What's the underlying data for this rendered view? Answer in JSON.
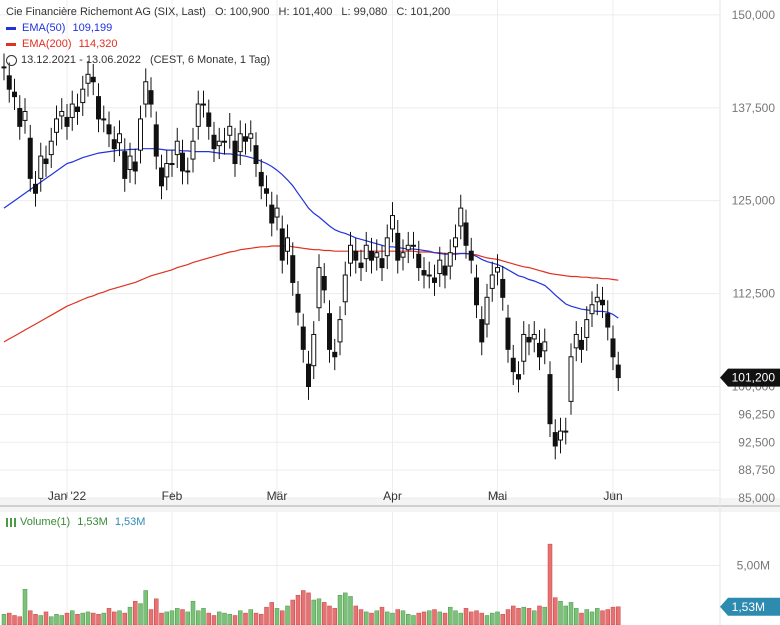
{
  "header": {
    "title": "Cie Financière Richemont AG (SIX, Last)",
    "ohlc": [
      {
        "label": "O:",
        "value": "100,900"
      },
      {
        "label": "H:",
        "value": "101,400"
      },
      {
        "label": "L:",
        "value": "99,080"
      },
      {
        "label": "C:",
        "value": "101,200"
      }
    ],
    "ema50": {
      "label": "EMA(50)",
      "value": "109,199",
      "color": "#2233dd"
    },
    "ema200": {
      "label": "EMA(200)",
      "value": "114,320",
      "color": "#e03020"
    },
    "range": "13.12.2021 - 13.06.2022",
    "range_note": "(CEST, 6 Monate, 1 Tag)"
  },
  "volume_legend": {
    "label": "Volume(1)",
    "value1": "1,53M",
    "value2": "1,53M"
  },
  "last_price_label": "101,200",
  "last_volume_label": "1,53M",
  "chart_data": [
    {
      "type": "candlestick",
      "ylim": [
        85000,
        152000
      ],
      "y_ticks": [
        "150,000",
        "137,500",
        "125,000",
        "112,500",
        "100,000",
        "96,250",
        "92,500",
        "88,750",
        "85,000"
      ],
      "y_tick_values": [
        150000,
        137500,
        125000,
        112500,
        100000,
        96250,
        92500,
        88750,
        85000
      ],
      "x_tick_labels": [
        "Jan '22",
        "Feb",
        "Mär",
        "Apr",
        "Mai",
        "Jun"
      ],
      "x_tick_index": [
        12,
        32,
        52,
        74,
        94,
        116
      ],
      "grid": true,
      "ohlc_close": [
        143,
        140,
        139,
        135,
        137,
        128,
        126,
        131,
        130,
        133,
        136,
        137,
        135,
        138,
        137,
        140,
        142,
        141,
        136,
        136,
        134,
        132,
        134,
        128,
        131,
        129,
        136,
        141,
        138,
        131,
        127,
        130,
        130,
        133,
        129,
        129,
        133,
        138,
        138,
        135,
        132,
        133,
        133,
        135,
        130,
        134,
        133,
        134,
        130,
        127,
        126,
        122,
        124,
        117,
        120,
        114,
        110,
        105,
        100,
        107,
        116,
        113,
        105,
        104,
        109,
        115,
        119,
        117,
        116,
        119,
        117,
        118,
        116,
        120,
        123,
        117,
        118,
        119,
        119,
        116,
        115,
        115,
        114,
        117,
        115,
        118,
        120,
        124,
        119,
        117,
        111,
        106,
        112,
        115,
        116,
        112,
        105,
        102,
        101,
        107,
        106,
        107,
        104,
        106,
        95,
        92,
        94,
        94,
        104,
        107,
        105,
        109,
        111,
        112,
        111,
        108,
        104,
        101.2
      ],
      "ema50": [
        124,
        124.5,
        125,
        125.5,
        126,
        126.5,
        127,
        127.5,
        128,
        128.5,
        129,
        129.5,
        130,
        130.2,
        130.5,
        130.8,
        131,
        131.2,
        131.4,
        131.5,
        131.6,
        131.7,
        131.8,
        131.8,
        131.9,
        131.9,
        132,
        132,
        132,
        132,
        131.9,
        131.8,
        131.8,
        131.8,
        131.7,
        131.7,
        131.6,
        131.6,
        131.6,
        131.6,
        131.5,
        131.4,
        131.3,
        131.3,
        131.2,
        131.1,
        131,
        130.8,
        130.6,
        130.3,
        130,
        129.6,
        129.1,
        128.5,
        127.8,
        127,
        126,
        125,
        124,
        123.3,
        122.8,
        122.2,
        121.6,
        121.1,
        120.8,
        120.6,
        120.3,
        120,
        119.8,
        119.6,
        119.4,
        119.2,
        119,
        118.8,
        118.8,
        118.7,
        118.6,
        118.5,
        118.5,
        118.4,
        118.3,
        118.2,
        118,
        117.9,
        117.8,
        117.8,
        117.8,
        117.9,
        117.9,
        117.8,
        117.5,
        117.1,
        116.8,
        116.6,
        116.4,
        116.1,
        115.7,
        115.3,
        114.9,
        114.7,
        114.4,
        114.2,
        113.9,
        113.6,
        113,
        112.3,
        111.7,
        111.1,
        110.8,
        110.6,
        110.4,
        110.3,
        110.2,
        110.1,
        110.1,
        110,
        109.7,
        109.2
      ],
      "ema200": [
        106,
        106.4,
        106.8,
        107.2,
        107.6,
        108,
        108.4,
        108.8,
        109.2,
        109.6,
        110,
        110.4,
        110.8,
        111.1,
        111.4,
        111.7,
        112,
        112.2,
        112.5,
        112.7,
        113,
        113.2,
        113.4,
        113.6,
        113.8,
        114,
        114.3,
        114.6,
        114.9,
        115.1,
        115.3,
        115.5,
        115.7,
        116,
        116.2,
        116.4,
        116.7,
        116.9,
        117.1,
        117.3,
        117.5,
        117.7,
        117.9,
        118.1,
        118.2,
        118.4,
        118.5,
        118.6,
        118.7,
        118.8,
        118.8,
        118.9,
        118.9,
        118.9,
        118.9,
        118.8,
        118.7,
        118.6,
        118.5,
        118.4,
        118.4,
        118.3,
        118.3,
        118.2,
        118.2,
        118.2,
        118.2,
        118.2,
        118.2,
        118.2,
        118.2,
        118.2,
        118.2,
        118.2,
        118.2,
        118.2,
        118.2,
        118.2,
        118.2,
        118.1,
        118.1,
        118.1,
        118,
        118,
        117.9,
        117.9,
        117.9,
        117.9,
        117.9,
        117.8,
        117.7,
        117.5,
        117.3,
        117.2,
        117.1,
        116.9,
        116.7,
        116.5,
        116.3,
        116.1,
        116,
        115.8,
        115.6,
        115.4,
        115.2,
        115.1,
        115,
        114.9,
        114.8,
        114.8,
        114.7,
        114.7,
        114.6,
        114.6,
        114.5,
        114.5,
        114.4,
        114.3
      ]
    },
    {
      "type": "bar",
      "name": "Volume(1)",
      "ylim": [
        0,
        9.5
      ],
      "y_ticks": [
        "5,00M"
      ],
      "y_tick_values": [
        5.0
      ],
      "values": [
        0.9,
        1.0,
        0.8,
        0.7,
        3.0,
        1.2,
        0.9,
        0.8,
        1.1,
        0.7,
        0.9,
        0.8,
        1.0,
        1.2,
        0.9,
        1.0,
        1.1,
        1.0,
        0.9,
        1.0,
        1.4,
        1.1,
        1.2,
        1.0,
        1.5,
        2.0,
        1.8,
        2.9,
        1.3,
        2.2,
        1.0,
        1.1,
        1.2,
        1.4,
        1.3,
        1.1,
        2.0,
        1.2,
        1.4,
        1.0,
        0.8,
        1.1,
        1.0,
        0.9,
        0.8,
        1.2,
        1.0,
        1.3,
        1.0,
        0.9,
        1.5,
        1.9,
        1.4,
        1.2,
        1.6,
        2.1,
        2.5,
        2.9,
        2.7,
        2.1,
        2.2,
        1.9,
        1.6,
        1.4,
        2.5,
        2.7,
        2.4,
        1.6,
        1.3,
        1.1,
        1.0,
        1.2,
        1.5,
        1.1,
        1.0,
        1.3,
        1.2,
        0.9,
        0.8,
        1.0,
        1.1,
        1.2,
        1.3,
        1.1,
        1.0,
        1.5,
        1.2,
        1.0,
        1.4,
        1.1,
        1.2,
        1.0,
        0.8,
        1.0,
        1.1,
        0.9,
        1.3,
        1.6,
        1.4,
        1.5,
        1.4,
        1.2,
        1.6,
        1.5,
        6.8,
        2.3,
        2.0,
        1.6,
        1.9,
        1.4,
        1.0,
        1.3,
        1.1,
        1.4,
        1.2,
        1.3,
        1.5,
        1.53
      ],
      "up_color": "#7cc17a",
      "down_color": "#e57373"
    }
  ]
}
